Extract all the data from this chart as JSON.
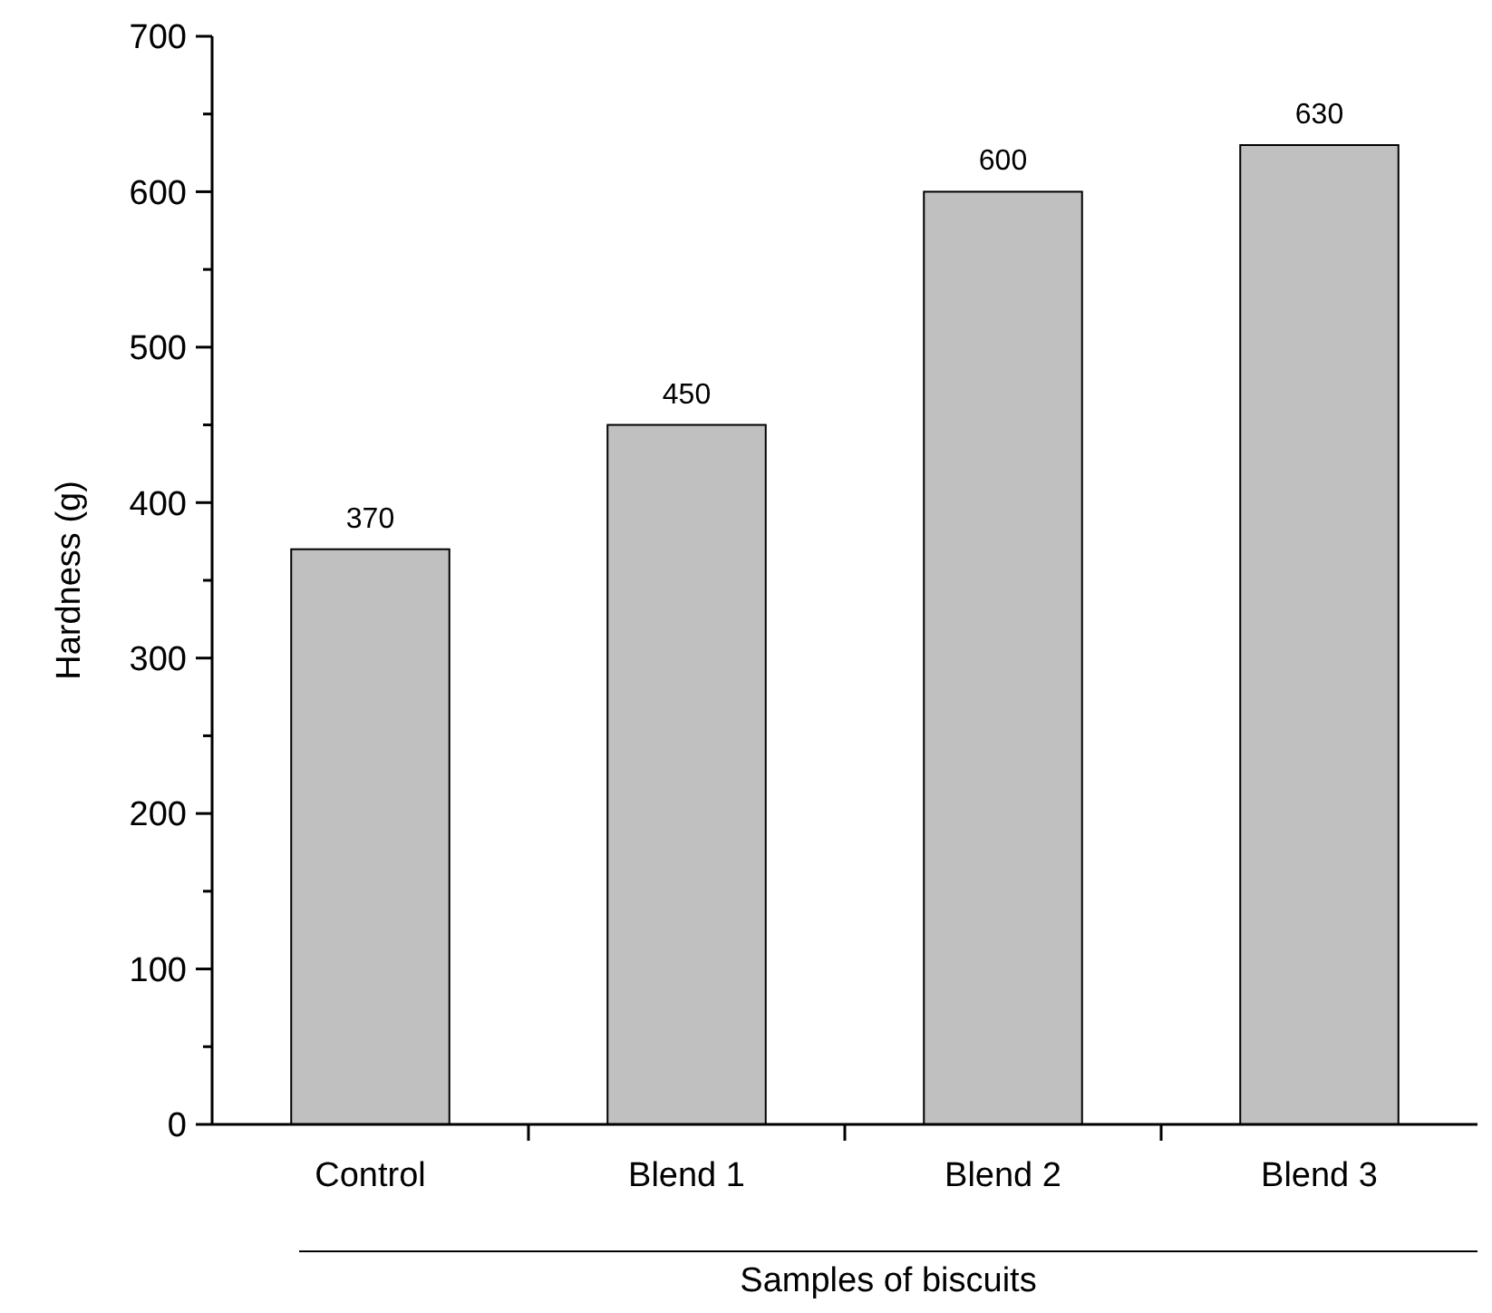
{
  "chart_data": {
    "type": "bar",
    "xlabel": "Samples of biscuits",
    "ylabel": "Hardness (g)",
    "categories": [
      "Control",
      "Blend 1",
      "Blend 2",
      "Blend 3"
    ],
    "values": [
      370,
      450,
      600,
      630
    ],
    "color": "#c0c0c0",
    "data_labels": true,
    "grid": false,
    "ylim": [
      0,
      700
    ],
    "yticks": [
      0,
      {
        "value": 50,
        "label": null
      },
      100,
      {
        "value": 150,
        "label": null
      },
      200,
      {
        "value": 250,
        "label": null
      },
      300,
      {
        "value": 350,
        "label": null
      },
      400,
      {
        "value": 450,
        "label": null
      },
      500,
      {
        "value": 550,
        "label": null
      },
      600,
      {
        "value": 650,
        "label": null
      },
      700
    ]
  }
}
